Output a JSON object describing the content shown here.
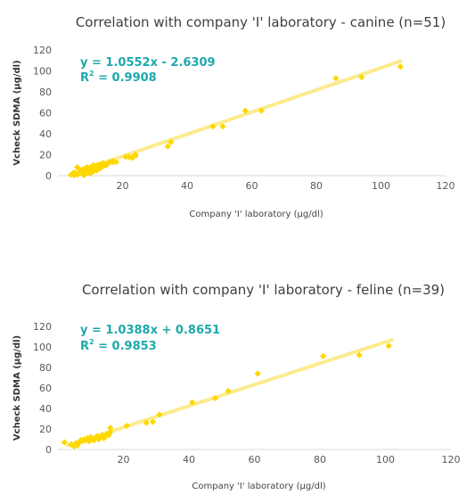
{
  "colors": {
    "point": "#FFD700",
    "trendline": "#FCEB8E",
    "equation": "#1DA9AC",
    "axis": "#D9D9D9"
  },
  "chart_data": [
    {
      "type": "scatter",
      "title": "Correlation with company 'I' laboratory - canine (n=51)",
      "xlabel": "Company 'I' laboratory (μg/dl)",
      "ylabel": "Vcheck SDMA (μg/dl)",
      "xlim": [
        0,
        120
      ],
      "ylim": [
        0,
        120
      ],
      "xticks": [
        20,
        40,
        60,
        80,
        100,
        120
      ],
      "yticks": [
        0,
        20,
        40,
        60,
        80,
        100,
        120
      ],
      "grid": false,
      "trendline": {
        "slope": 1.0552,
        "intercept": -2.6309,
        "x_range": [
          4,
          106
        ]
      },
      "equation": "y = 1.0552x - 2.6309",
      "r2_label": "R",
      "r2_sup": "2",
      "r2_value": " = 0.9908",
      "points": [
        [
          4.0,
          1.0
        ],
        [
          5.0,
          0.5
        ],
        [
          5.0,
          3.0
        ],
        [
          5.5,
          1.5
        ],
        [
          6.0,
          8.0
        ],
        [
          6.5,
          2.0
        ],
        [
          7.0,
          5.0
        ],
        [
          7.5,
          6.0
        ],
        [
          8.0,
          4.0
        ],
        [
          8.0,
          0.5
        ],
        [
          8.5,
          7.0
        ],
        [
          9.0,
          3.0
        ],
        [
          9.0,
          6.0
        ],
        [
          9.5,
          5.0
        ],
        [
          10.0,
          8.0
        ],
        [
          10.0,
          2.0
        ],
        [
          10.5,
          6.0
        ],
        [
          11.0,
          4.0
        ],
        [
          11.0,
          9.0
        ],
        [
          11.5,
          7.0
        ],
        [
          12.0,
          10.0
        ],
        [
          12.0,
          5.0
        ],
        [
          12.5,
          8.0
        ],
        [
          13.0,
          11.0
        ],
        [
          13.0,
          7.0
        ],
        [
          14.0,
          9.0
        ],
        [
          15.0,
          10.0
        ],
        [
          16.0,
          13.0
        ],
        [
          17.0,
          14.0
        ],
        [
          17.0,
          13.0
        ],
        [
          18.0,
          13.0
        ],
        [
          21.0,
          18.0
        ],
        [
          23.0,
          17.0
        ],
        [
          24.0,
          20.0
        ],
        [
          24.0,
          19.0
        ],
        [
          34.0,
          28.0
        ],
        [
          35.0,
          32.0
        ],
        [
          48.0,
          47.0
        ],
        [
          51.0,
          47.0
        ],
        [
          58.0,
          62.0
        ],
        [
          63.0,
          62.0
        ],
        [
          86.0,
          93.0
        ],
        [
          94.0,
          94.0
        ],
        [
          106.0,
          104.0
        ],
        [
          5.0,
          2.0
        ],
        [
          6.0,
          1.0
        ],
        [
          9.0,
          8.0
        ],
        [
          14.0,
          12.0
        ],
        [
          22.0,
          18.0
        ],
        [
          11.0,
          10.0
        ],
        [
          7.0,
          3.0
        ]
      ]
    },
    {
      "type": "scatter",
      "title": "Correlation with company 'I' laboratory - feline (n=39)",
      "xlabel": "Company 'I' laboratory (μg/dl)",
      "ylabel": "Vcheck SDMA (μg/dl)",
      "xlim": [
        0,
        120
      ],
      "ylim": [
        0,
        120
      ],
      "xticks": [
        20,
        40,
        60,
        80,
        100,
        120
      ],
      "yticks": [
        0,
        20,
        40,
        60,
        80,
        100,
        120
      ],
      "grid": false,
      "trendline": {
        "slope": 1.0388,
        "intercept": 0.8651,
        "x_range": [
          3,
          102
        ]
      },
      "equation": "y = 1.0388x + 0.8651",
      "r2_label": "R",
      "r2_sup": "2",
      "r2_value": " = 0.9853",
      "points": [
        [
          2.0,
          7.0
        ],
        [
          4.0,
          5.0
        ],
        [
          5.0,
          3.0
        ],
        [
          5.5,
          6.0
        ],
        [
          6.0,
          4.0
        ],
        [
          6.5,
          7.0
        ],
        [
          7.0,
          9.0
        ],
        [
          7.5,
          8.0
        ],
        [
          8.0,
          10.0
        ],
        [
          8.5,
          9.0
        ],
        [
          9.0,
          11.0
        ],
        [
          9.5,
          8.0
        ],
        [
          10.0,
          12.0
        ],
        [
          10.5,
          10.0
        ],
        [
          11.0,
          9.0
        ],
        [
          11.5,
          11.0
        ],
        [
          12.0,
          13.0
        ],
        [
          12.5,
          10.0
        ],
        [
          13.0,
          12.0
        ],
        [
          13.5,
          14.0
        ],
        [
          14.0,
          11.0
        ],
        [
          14.5,
          13.0
        ],
        [
          15.0,
          15.0
        ],
        [
          15.5,
          14.0
        ],
        [
          16.0,
          17.0
        ],
        [
          16.0,
          21.0
        ],
        [
          21.0,
          23.0
        ],
        [
          27.0,
          26.0
        ],
        [
          29.0,
          27.0
        ],
        [
          31.0,
          34.0
        ],
        [
          41.0,
          46.0
        ],
        [
          48.0,
          50.0
        ],
        [
          52.0,
          57.0
        ],
        [
          61.0,
          74.0
        ],
        [
          81.0,
          91.0
        ],
        [
          92.0,
          92.0
        ],
        [
          101.0,
          101.0
        ],
        [
          10.0,
          11.0
        ],
        [
          13.0,
          12.0
        ]
      ]
    }
  ]
}
